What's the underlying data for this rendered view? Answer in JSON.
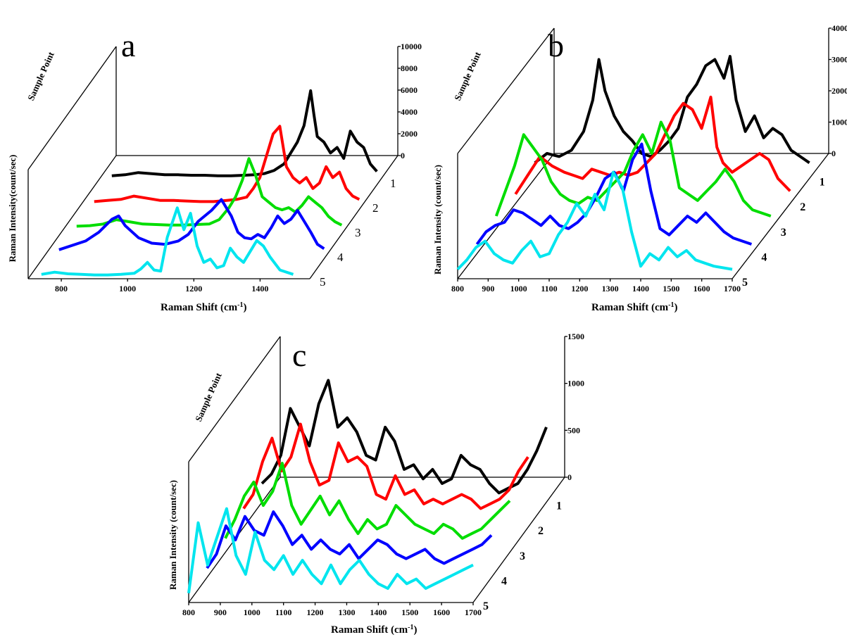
{
  "figure": {
    "x_axis_title": "Raman Shift (cm",
    "x_axis_superscript": "-1",
    "x_axis_close": ")",
    "y_axis_title_a": "Raman Intensity(count/sec)",
    "y_axis_title_bc": "Raman Intensity (count/sec)",
    "depth_axis_title": "Sample Point"
  },
  "chart_data": [
    {
      "type": "line",
      "panel": "a",
      "x_ticks": [
        "800",
        "1000",
        "1200",
        "1400"
      ],
      "xlim": [
        700,
        1550
      ],
      "z_ticks": [
        "0",
        "2000",
        "4000",
        "6000",
        "8000",
        "10000"
      ],
      "zlim": [
        0,
        10000
      ],
      "samples": [
        "1",
        "2",
        "3",
        "4",
        "5"
      ],
      "series": [
        {
          "name": "1",
          "color": "#000000",
          "x": [
            740,
            780,
            820,
            860,
            900,
            940,
            980,
            1020,
            1060,
            1100,
            1140,
            1170,
            1200,
            1230,
            1260,
            1280,
            1300,
            1320,
            1340,
            1350,
            1360,
            1380,
            1400,
            1420,
            1440,
            1460,
            1480,
            1500,
            1520,
            1540
          ],
          "y": [
            400,
            500,
            700,
            600,
            500,
            500,
            450,
            450,
            400,
            400,
            450,
            500,
            600,
            900,
            1500,
            2500,
            3500,
            5000,
            8200,
            6000,
            4000,
            3500,
            2500,
            3000,
            2000,
            4500,
            3500,
            3000,
            1500,
            800
          ]
        },
        {
          "name": "2",
          "color": "#ff0000",
          "x": [
            740,
            780,
            820,
            860,
            900,
            940,
            980,
            1020,
            1060,
            1100,
            1140,
            1170,
            1200,
            1220,
            1240,
            1260,
            1280,
            1300,
            1320,
            1340,
            1360,
            1380,
            1400,
            1420,
            1440,
            1460,
            1480,
            1500,
            1520,
            1540
          ],
          "y": [
            300,
            400,
            500,
            800,
            600,
            400,
            400,
            350,
            300,
            300,
            400,
            500,
            700,
            1500,
            2500,
            4500,
            6500,
            7200,
            3500,
            2500,
            2000,
            2500,
            1500,
            2000,
            3500,
            2500,
            3000,
            1500,
            800,
            500
          ]
        },
        {
          "name": "3",
          "color": "#00dd00",
          "x": [
            740,
            780,
            820,
            860,
            900,
            940,
            980,
            1020,
            1060,
            1100,
            1140,
            1170,
            1200,
            1220,
            1240,
            1260,
            1280,
            1300,
            1320,
            1340,
            1360,
            1380,
            1400,
            1420,
            1440,
            1460,
            1480,
            1500,
            1520,
            1540
          ],
          "y": [
            300,
            350,
            500,
            900,
            700,
            500,
            450,
            400,
            400,
            450,
            500,
            900,
            2000,
            3000,
            4500,
            6500,
            5000,
            3000,
            2500,
            2000,
            1800,
            2000,
            1600,
            2200,
            3000,
            2500,
            2000,
            1200,
            700,
            400
          ]
        },
        {
          "name": "4",
          "color": "#0000ff",
          "x": [
            740,
            780,
            820,
            860,
            900,
            920,
            940,
            980,
            1020,
            1060,
            1100,
            1130,
            1160,
            1200,
            1230,
            1260,
            1280,
            1300,
            1320,
            1340,
            1360,
            1380,
            1400,
            1420,
            1440,
            1460,
            1480,
            1500,
            1520,
            1540
          ],
          "y": [
            400,
            800,
            1200,
            2000,
            3200,
            3500,
            2600,
            1500,
            1000,
            900,
            1200,
            1800,
            3000,
            4000,
            5000,
            3500,
            2000,
            1500,
            1400,
            1800,
            1500,
            2400,
            3500,
            2800,
            3200,
            4000,
            3000,
            2000,
            900,
            500
          ]
        },
        {
          "name": "5",
          "color": "#00e5ee",
          "x": [
            740,
            780,
            820,
            860,
            900,
            940,
            980,
            1020,
            1040,
            1060,
            1080,
            1100,
            1120,
            1150,
            1170,
            1190,
            1210,
            1230,
            1250,
            1270,
            1290,
            1310,
            1330,
            1350,
            1370,
            1390,
            1410,
            1430,
            1460,
            1500
          ],
          "y": [
            400,
            600,
            450,
            400,
            350,
            350,
            400,
            500,
            900,
            1500,
            800,
            700,
            3800,
            6500,
            4500,
            6000,
            3000,
            1500,
            1800,
            1000,
            1200,
            2800,
            2000,
            1500,
            2500,
            3500,
            3000,
            2000,
            800,
            400
          ]
        }
      ]
    },
    {
      "type": "line",
      "panel": "b",
      "x_ticks": [
        "800",
        "900",
        "1000",
        "1100",
        "1200",
        "1300",
        "1400",
        "1500",
        "1600",
        "1700"
      ],
      "xlim": [
        800,
        1700
      ],
      "z_ticks": [
        "0",
        "1000",
        "2000",
        "3000",
        "4000"
      ],
      "zlim": [
        0,
        4000
      ],
      "samples": [
        "1",
        "2",
        "3",
        "4",
        "5"
      ],
      "series": [
        {
          "name": "1",
          "color": "#000000",
          "x": [
            800,
            840,
            880,
            920,
            960,
            990,
            1010,
            1030,
            1060,
            1090,
            1120,
            1150,
            1180,
            1210,
            1240,
            1270,
            1300,
            1330,
            1360,
            1390,
            1420,
            1440,
            1460,
            1490,
            1520,
            1550,
            1580,
            1610,
            1640,
            1670,
            1700
          ],
          "y": [
            500,
            800,
            700,
            900,
            1500,
            2500,
            3800,
            2800,
            2000,
            1500,
            1200,
            800,
            700,
            900,
            1200,
            1600,
            2600,
            3000,
            3600,
            3800,
            3200,
            3900,
            2500,
            1500,
            2000,
            1300,
            1600,
            1400,
            900,
            700,
            500
          ]
        },
        {
          "name": "2",
          "color": "#ff0000",
          "x": [
            800,
            840,
            880,
            920,
            960,
            990,
            1020,
            1050,
            1080,
            1110,
            1140,
            1170,
            1200,
            1230,
            1260,
            1290,
            1320,
            1350,
            1380,
            1410,
            1440,
            1460,
            1480,
            1510,
            1540,
            1570,
            1600,
            1630,
            1660,
            1700
          ],
          "y": [
            300,
            900,
            1500,
            1200,
            1000,
            900,
            800,
            1100,
            1000,
            900,
            1000,
            900,
            1000,
            1300,
            1600,
            2200,
            2800,
            3200,
            3000,
            2400,
            3400,
            1800,
            1300,
            1000,
            1200,
            1400,
            1600,
            1400,
            800,
            400
          ]
        },
        {
          "name": "3",
          "color": "#00dd00",
          "x": [
            800,
            830,
            860,
            890,
            920,
            950,
            980,
            1010,
            1040,
            1070,
            1100,
            1130,
            1160,
            1190,
            1220,
            1250,
            1280,
            1310,
            1340,
            1370,
            1400,
            1430,
            1460,
            1490,
            1520,
            1550,
            1580,
            1610,
            1640,
            1700
          ],
          "y": [
            400,
            1200,
            2000,
            3000,
            2600,
            2200,
            1500,
            1100,
            900,
            800,
            1000,
            900,
            1200,
            1500,
            1800,
            2500,
            3000,
            2400,
            3400,
            2800,
            1300,
            1100,
            900,
            1200,
            1500,
            1900,
            1500,
            900,
            600,
            400
          ]
        },
        {
          "name": "4",
          "color": "#0000ff",
          "x": [
            800,
            830,
            860,
            890,
            920,
            950,
            980,
            1010,
            1040,
            1070,
            1100,
            1130,
            1160,
            1190,
            1220,
            1250,
            1280,
            1310,
            1340,
            1370,
            1400,
            1430,
            1460,
            1490,
            1520,
            1550,
            1580,
            1610,
            1640,
            1700
          ],
          "y": [
            300,
            700,
            900,
            1000,
            1400,
            1300,
            1100,
            900,
            1200,
            900,
            800,
            1000,
            1300,
            1800,
            2400,
            2600,
            2000,
            3000,
            3500,
            2000,
            800,
            600,
            900,
            1200,
            1000,
            1300,
            1000,
            700,
            500,
            300
          ]
        },
        {
          "name": "5",
          "color": "#00e5ee",
          "x": [
            800,
            830,
            860,
            890,
            920,
            950,
            980,
            1010,
            1040,
            1070,
            1100,
            1130,
            1160,
            1190,
            1220,
            1250,
            1280,
            1310,
            1340,
            1370,
            1400,
            1430,
            1460,
            1490,
            1520,
            1550,
            1580,
            1610,
            1640,
            1700
          ],
          "y": [
            300,
            600,
            1000,
            1200,
            800,
            600,
            500,
            900,
            1200,
            700,
            800,
            1400,
            1800,
            2400,
            2000,
            2700,
            2200,
            3400,
            2900,
            1500,
            400,
            800,
            600,
            1000,
            700,
            900,
            600,
            500,
            400,
            300
          ]
        }
      ]
    },
    {
      "type": "line",
      "panel": "c",
      "x_ticks": [
        "800",
        "900",
        "1000",
        "1100",
        "1200",
        "1300",
        "1400",
        "1500",
        "1600",
        "1700"
      ],
      "xlim": [
        800,
        1700
      ],
      "z_ticks": [
        "0",
        "500",
        "1000",
        "1500"
      ],
      "zlim": [
        0,
        1500
      ],
      "samples": [
        "1",
        "2",
        "3",
        "4",
        "5"
      ],
      "series": [
        {
          "name": "1",
          "color": "#000000",
          "x": [
            800,
            830,
            860,
            890,
            920,
            950,
            980,
            1010,
            1040,
            1070,
            1100,
            1130,
            1160,
            1190,
            1220,
            1250,
            1280,
            1310,
            1340,
            1370,
            1400,
            1430,
            1460,
            1490,
            1520,
            1550,
            1580,
            1610,
            1640,
            1670,
            1700
          ],
          "y": [
            200,
            300,
            500,
            1000,
            800,
            600,
            1050,
            1300,
            800,
            900,
            750,
            500,
            450,
            800,
            650,
            350,
            400,
            250,
            350,
            200,
            250,
            500,
            400,
            350,
            200,
            100,
            150,
            200,
            350,
            550,
            800
          ]
        },
        {
          "name": "2",
          "color": "#ff0000",
          "x": [
            800,
            830,
            860,
            890,
            920,
            950,
            980,
            1010,
            1040,
            1070,
            1100,
            1130,
            1160,
            1190,
            1220,
            1250,
            1280,
            1310,
            1340,
            1370,
            1400,
            1430,
            1460,
            1490,
            1520,
            1550,
            1580,
            1610,
            1640,
            1670,
            1700
          ],
          "y": [
            200,
            350,
            700,
            950,
            600,
            750,
            1100,
            700,
            450,
            500,
            900,
            700,
            750,
            650,
            350,
            300,
            550,
            350,
            400,
            250,
            300,
            250,
            300,
            350,
            300,
            200,
            250,
            300,
            400,
            600,
            750
          ]
        },
        {
          "name": "3",
          "color": "#00dd00",
          "x": [
            800,
            830,
            860,
            890,
            920,
            950,
            980,
            1010,
            1040,
            1070,
            1100,
            1130,
            1160,
            1190,
            1220,
            1250,
            1280,
            1310,
            1340,
            1370,
            1400,
            1430,
            1460,
            1490,
            1520,
            1550,
            1580,
            1610,
            1640,
            1670,
            1700
          ],
          "y": [
            150,
            350,
            600,
            750,
            500,
            650,
            950,
            500,
            300,
            450,
            600,
            400,
            550,
            350,
            200,
            350,
            250,
            300,
            500,
            400,
            300,
            250,
            200,
            300,
            250,
            150,
            200,
            250,
            350,
            450,
            550
          ]
        },
        {
          "name": "4",
          "color": "#0000ff",
          "x": [
            800,
            830,
            860,
            890,
            920,
            950,
            980,
            1010,
            1040,
            1070,
            1100,
            1130,
            1160,
            1190,
            1220,
            1250,
            1280,
            1310,
            1340,
            1370,
            1400,
            1430,
            1460,
            1490,
            1520,
            1550,
            1580,
            1610,
            1640,
            1670,
            1700
          ],
          "y": [
            100,
            250,
            550,
            400,
            650,
            500,
            450,
            700,
            550,
            350,
            450,
            300,
            400,
            300,
            250,
            350,
            200,
            300,
            400,
            350,
            250,
            200,
            250,
            300,
            200,
            150,
            200,
            250,
            300,
            350,
            450
          ]
        },
        {
          "name": "5",
          "color": "#00e5ee",
          "x": [
            800,
            830,
            860,
            890,
            920,
            950,
            980,
            1010,
            1040,
            1070,
            1100,
            1130,
            1160,
            1190,
            1220,
            1250,
            1280,
            1310,
            1340,
            1370,
            1400,
            1430,
            1460,
            1490,
            1520,
            1550,
            1580,
            1610,
            1640,
            1670,
            1700
          ],
          "y": [
            100,
            850,
            400,
            700,
            1000,
            500,
            300,
            750,
            450,
            350,
            500,
            300,
            450,
            300,
            200,
            400,
            200,
            350,
            450,
            300,
            200,
            150,
            300,
            200,
            250,
            150,
            200,
            250,
            300,
            350,
            400
          ]
        }
      ]
    }
  ]
}
